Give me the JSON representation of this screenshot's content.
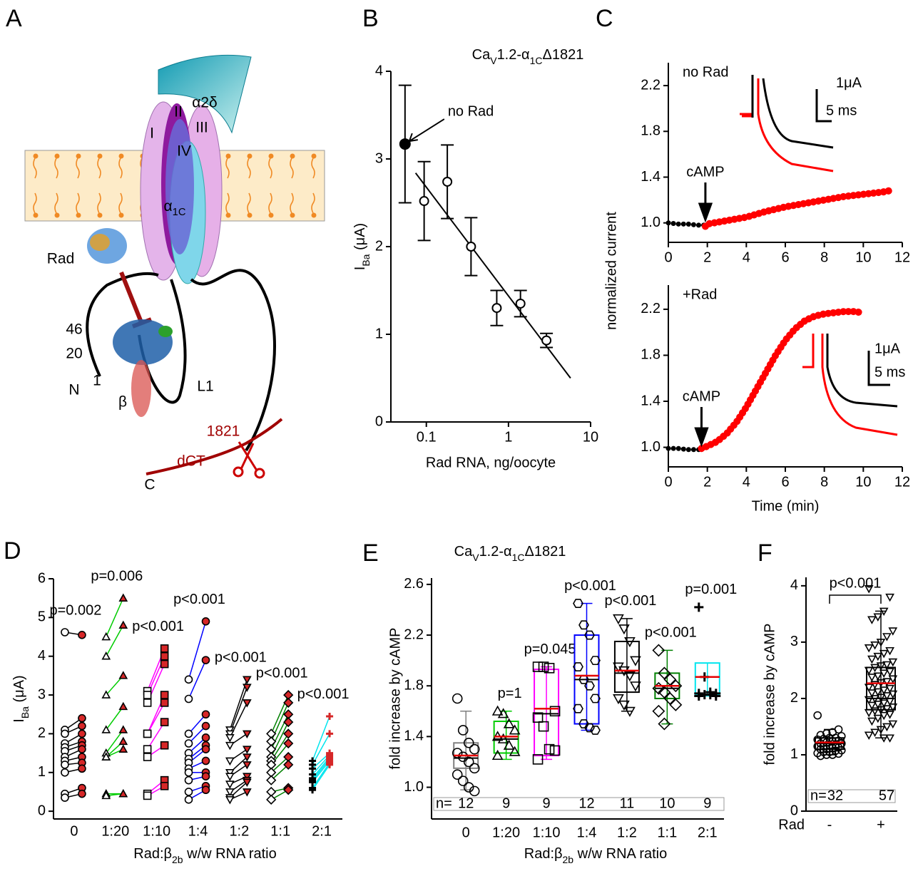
{
  "panel_labels": [
    "A",
    "B",
    "C",
    "D",
    "E",
    "F"
  ],
  "diagram": {
    "alpha2delta": "α2δ",
    "domains": [
      "I",
      "II",
      "III",
      "IV"
    ],
    "alpha1c": [
      "α",
      {
        "sub": "1C"
      }
    ],
    "rad": "Rad",
    "residues": [
      "46",
      "20",
      "1"
    ],
    "n_term": "N",
    "beta": "β",
    "loop": "L1",
    "cut_site": "1821",
    "dct": "dCT",
    "c_term": "C"
  },
  "chart_data": [
    {
      "type": "scatter",
      "title": [
        "Ca",
        {
          "sub": "V"
        },
        "1.2-α",
        {
          "sub": "1C"
        },
        "Δ1821"
      ],
      "x_label": "Rad RNA, ng/oocyte",
      "y_label": [
        "I",
        {
          "sub": "Ba"
        },
        " (μA)"
      ],
      "log_x": true,
      "color": "#000000",
      "x": [
        0.055,
        0.094,
        0.18,
        0.35,
        0.72,
        1.4,
        2.9
      ],
      "values": [
        3.17,
        2.52,
        2.74,
        2.0,
        1.3,
        1.35,
        0.93
      ],
      "errors": [
        0.67,
        0.45,
        0.42,
        0.33,
        0.2,
        0.15,
        0.08
      ],
      "filled": [
        true,
        false,
        false,
        false,
        false,
        false,
        false
      ],
      "fit": {
        "x": [
          0.074,
          5.7
        ],
        "values": [
          2.84,
          0.5
        ]
      },
      "annotation": "no Rad",
      "xlim": [
        0.037,
        10
      ],
      "ylim": [
        0,
        4
      ],
      "xticks": [
        0.1,
        1,
        10
      ],
      "yticks": [
        0,
        1,
        2,
        3,
        4
      ]
    },
    {
      "type": "line",
      "annotation": "no Rad",
      "stimulus": "cAMP",
      "stimulus_time": 1.9,
      "scale_labels": [
        "1μA",
        "5 ms"
      ],
      "y_label": "normalized current",
      "xlim": [
        0,
        12
      ],
      "xticks": [
        0,
        2,
        4,
        6,
        8,
        10,
        12
      ],
      "ylim": [
        0.83,
        2.4
      ],
      "yticks": [
        {
          "value": 1,
          "label": "1.0"
        },
        {
          "value": 1.4,
          "label": "1.4"
        },
        {
          "value": 1.8,
          "label": "1.8"
        },
        {
          "value": 2.2,
          "label": "2.2"
        }
      ],
      "series": [
        {
          "color": "#000000",
          "x": [
            0,
            0.5,
            1,
            1.5,
            1.9
          ],
          "values": [
            1.0,
            0.99,
            0.99,
            0.98,
            0.98
          ]
        },
        {
          "color": "#ff0000",
          "x": [
            1.9,
            2,
            3,
            4,
            5,
            6,
            7,
            8,
            9,
            10,
            11,
            11.3
          ],
          "values": [
            0.97,
            0.99,
            1.02,
            1.05,
            1.1,
            1.14,
            1.17,
            1.2,
            1.23,
            1.25,
            1.27,
            1.28
          ]
        }
      ]
    },
    {
      "type": "line",
      "annotation": "+Rad",
      "stimulus": "cAMP",
      "stimulus_time": 1.7,
      "scale_labels": [
        "1μA",
        "5 ms"
      ],
      "x_label": "Time (min)",
      "xlim": [
        0,
        12
      ],
      "xticks": [
        0,
        2,
        4,
        6,
        8,
        10,
        12
      ],
      "ylim": [
        0.83,
        2.41
      ],
      "yticks": [
        {
          "value": 1,
          "label": "1.0"
        },
        {
          "value": 1.4,
          "label": "1.4"
        },
        {
          "value": 1.8,
          "label": "1.8"
        },
        {
          "value": 2.2,
          "label": "2.2"
        }
      ],
      "series": [
        {
          "color": "#000000",
          "x": [
            0,
            0.5,
            1,
            1.5,
            1.7
          ],
          "values": [
            0.99,
            0.99,
            0.98,
            0.98,
            0.98
          ]
        },
        {
          "color": "#ff0000",
          "x": [
            1.7,
            2,
            2.5,
            3,
            3.5,
            4,
            4.5,
            5,
            5.5,
            6,
            6.5,
            7,
            7.5,
            8,
            8.5,
            9,
            9.5,
            10
          ],
          "values": [
            0.99,
            1.01,
            1.05,
            1.12,
            1.22,
            1.35,
            1.5,
            1.65,
            1.8,
            1.93,
            2.03,
            2.1,
            2.14,
            2.16,
            2.17,
            2.18,
            2.18,
            2.17
          ]
        }
      ]
    },
    {
      "type": "paired_dot",
      "x_label": [
        "Rad:β",
        {
          "sub": "2b"
        },
        " w/w RNA ratio"
      ],
      "y_label": [
        "I",
        {
          "sub": "Ba"
        },
        " (μA)"
      ],
      "categories": [
        "0",
        "1:20",
        "1:10",
        "1:4",
        "1:2",
        "1:1",
        "2:1"
      ],
      "ylim": [
        -0.2,
        6
      ],
      "yticks": [
        0,
        1,
        2,
        3,
        4,
        5,
        6
      ],
      "after_color": "#d62728",
      "groups": [
        {
          "p": "p=0.002",
          "color": "#000000",
          "marker": "circle",
          "before": [
            4.62,
            2.1,
            2.0,
            1.75,
            1.65,
            1.55,
            1.4,
            1.3,
            1.2,
            1.0,
            0.45,
            0.35
          ],
          "after": [
            4.55,
            2.4,
            2.2,
            2.0,
            1.8,
            1.7,
            1.6,
            1.4,
            1.25,
            1.1,
            0.6,
            0.45
          ]
        },
        {
          "p": "p=0.006",
          "color": "#00cc00",
          "marker": "triangle",
          "before": [
            4.5,
            4.0,
            3.0,
            2.1,
            1.5,
            1.4,
            1.4,
            0.45,
            0.4
          ],
          "after": [
            5.5,
            4.8,
            3.5,
            2.7,
            2.1,
            1.6,
            1.8,
            0.45,
            0.45
          ]
        },
        {
          "p": "p<0.001",
          "color": "#ff00ff",
          "marker": "square",
          "before": [
            3.1,
            3.0,
            2.8,
            2.0,
            2.0,
            1.6,
            1.4,
            0.45,
            0.4
          ],
          "after": [
            4.2,
            4.0,
            3.8,
            3.0,
            2.8,
            2.3,
            1.7,
            0.8,
            0.65
          ]
        },
        {
          "p": "p<0.001",
          "color": "#0000ff",
          "marker": "circle",
          "before": [
            3.4,
            2.9,
            2.0,
            1.75,
            1.5,
            1.35,
            1.25,
            1.1,
            1.0,
            0.8,
            0.5,
            0.3
          ],
          "after": [
            4.9,
            3.9,
            2.5,
            2.2,
            1.9,
            1.7,
            1.6,
            1.3,
            1.0,
            0.9,
            0.65,
            0.55
          ]
        },
        {
          "p": "p<0.001",
          "color": "#000000",
          "marker": "triangle-down",
          "before": [
            2.1,
            2.0,
            1.9,
            1.7,
            1.3,
            1.0,
            0.9,
            0.7,
            0.5,
            0.35,
            0.3
          ],
          "after": [
            3.4,
            3.2,
            2.8,
            2.0,
            1.6,
            1.4,
            1.2,
            0.9,
            0.8,
            0.75,
            0.5
          ]
        },
        {
          "p": "p<0.001",
          "color": "#008000",
          "marker": "diamond",
          "before": [
            2.0,
            1.8,
            1.6,
            1.4,
            1.3,
            1.2,
            1.0,
            0.8,
            0.5,
            0.3
          ],
          "after": [
            3.0,
            2.8,
            2.5,
            2.3,
            2.0,
            1.75,
            1.4,
            1.2,
            0.6,
            0.55
          ]
        },
        {
          "p": "p<0.001",
          "color": "#00e5ee",
          "marker": "plus",
          "before": [
            1.3,
            1.2,
            1.1,
            0.95,
            0.85,
            0.8,
            0.75,
            0.6,
            0.55
          ],
          "after": [
            2.45,
            2.0,
            1.5,
            1.45,
            1.4,
            1.35,
            1.3,
            1.25,
            1.2
          ]
        }
      ]
    },
    {
      "type": "box",
      "title": [
        "Ca",
        {
          "sub": "V"
        },
        "1.2-α",
        {
          "sub": "1C"
        },
        "Δ1821"
      ],
      "x_label": [
        "Rad:β",
        {
          "sub": "2b"
        },
        " w/w RNA ratio"
      ],
      "y_label": "fold increase by cAMP",
      "categories": [
        "0",
        "1:20",
        "1:10",
        "1:4",
        "1:2",
        "1:1",
        "2:1"
      ],
      "ylim": [
        0.75,
        2.65
      ],
      "yticks": [
        {
          "value": 1,
          "label": "1.0"
        },
        {
          "value": 1.4,
          "label": "1.4"
        },
        {
          "value": 1.8,
          "label": "1.8"
        },
        {
          "value": 2.2,
          "label": "2.2"
        },
        {
          "value": 2.6,
          "label": "2.6"
        }
      ],
      "n_prefix": "n=",
      "mean_color": "#e60000",
      "groups": [
        {
          "n": 12,
          "color": "#808080",
          "marker": "circle",
          "q1": 1.15,
          "median": 1.23,
          "mean": 1.25,
          "q3": 1.35,
          "whisker_low": 0.98,
          "whisker_high": 1.6,
          "points": [
            1.7,
            1.45,
            1.35,
            1.3,
            1.27,
            1.24,
            1.2,
            1.15,
            1.1,
            1.05,
            1.0,
            0.97
          ]
        },
        {
          "n": 9,
          "p": "p=1",
          "color": "#00cc00",
          "marker": "triangle",
          "q1": 1.27,
          "median": 1.38,
          "mean": 1.4,
          "q3": 1.52,
          "whisker_low": 1.22,
          "whisker_high": 1.6,
          "points": [
            1.6,
            1.58,
            1.5,
            1.45,
            1.4,
            1.38,
            1.33,
            1.28,
            1.25
          ]
        },
        {
          "n": 9,
          "p": "p=0.045",
          "color": "#ff00ff",
          "marker": "square",
          "q1": 1.25,
          "median": 1.58,
          "mean": 1.62,
          "q3": 1.93,
          "whisker_low": 1.22,
          "whisker_high": 1.95,
          "points": [
            1.95,
            1.95,
            1.94,
            1.6,
            1.55,
            1.48,
            1.3,
            1.29,
            1.22
          ]
        },
        {
          "n": 12,
          "p": "p<0.001",
          "color": "#0000ff",
          "marker": "hexagon",
          "q1": 1.5,
          "median": 1.85,
          "mean": 1.88,
          "q3": 2.2,
          "whisker_low": 1.45,
          "whisker_high": 2.45,
          "points": [
            2.45,
            2.28,
            2.2,
            2.0,
            1.95,
            1.85,
            1.8,
            1.7,
            1.62,
            1.5,
            1.47,
            1.45
          ]
        },
        {
          "n": 11,
          "p": "p<0.001",
          "color": "#000000",
          "marker": "triangle-down",
          "q1": 1.75,
          "median": 1.9,
          "mean": 1.92,
          "q3": 2.15,
          "whisker_low": 1.6,
          "whisker_high": 2.33,
          "points": [
            2.33,
            2.25,
            2.15,
            2.0,
            1.95,
            1.92,
            1.88,
            1.8,
            1.7,
            1.65,
            1.6
          ]
        },
        {
          "n": 10,
          "p": "p<0.001",
          "color": "#008000",
          "marker": "diamond",
          "q1": 1.7,
          "median": 1.78,
          "mean": 1.8,
          "q3": 1.9,
          "whisker_low": 1.5,
          "whisker_high": 2.08,
          "points": [
            2.08,
            1.9,
            1.85,
            1.8,
            1.78,
            1.75,
            1.7,
            1.65,
            1.6,
            1.5
          ]
        },
        {
          "n": 9,
          "p": "p=0.001",
          "color": "#00e5ee",
          "marker": "plus",
          "q1": 1.73,
          "median": 1.87,
          "mean": 1.87,
          "q3": 1.98,
          "whisker_low": 1.72,
          "whisker_high": 1.98,
          "points": [
            2.42,
            1.87,
            1.75,
            1.74,
            1.74,
            1.73,
            1.73,
            1.72,
            1.72
          ]
        }
      ]
    },
    {
      "type": "box",
      "x_label": "Rad",
      "y_label": "fold increase by cAMP",
      "categories": [
        "-",
        "+"
      ],
      "ylim": [
        0,
        4.15
      ],
      "yticks": [
        0,
        1,
        2,
        3,
        4
      ],
      "n_prefix": "n=",
      "mean_color": "#e60000",
      "bracket": "p<0.001",
      "groups": [
        {
          "n": 32,
          "color": "#000000",
          "marker": "circle",
          "q1": 1.1,
          "median": 1.2,
          "mean": 1.22,
          "q3": 1.3,
          "whisker_low": 1.0,
          "whisker_high": 1.45,
          "points": [
            1.7,
            1.45,
            1.4,
            1.38,
            1.35,
            1.33,
            1.3,
            1.3,
            1.28,
            1.27,
            1.25,
            1.24,
            1.22,
            1.2,
            1.2,
            1.18,
            1.17,
            1.15,
            1.15,
            1.13,
            1.12,
            1.1,
            1.1,
            1.08,
            1.07,
            1.05,
            1.05,
            1.03,
            1.02,
            1.0,
            1.0,
            0.98
          ]
        },
        {
          "n": 57,
          "color": "#000000",
          "marker": "triangle-down",
          "q1": 1.8,
          "median": 2.0,
          "mean": 2.27,
          "q3": 2.55,
          "whisker_low": 1.3,
          "whisker_high": 3.55,
          "points": [
            3.95,
            3.8,
            3.55,
            3.45,
            3.4,
            3.2,
            3.1,
            3.0,
            2.95,
            2.9,
            2.85,
            2.8,
            2.75,
            2.7,
            2.65,
            2.6,
            2.58,
            2.55,
            2.5,
            2.48,
            2.45,
            2.4,
            2.38,
            2.35,
            2.3,
            2.28,
            2.25,
            2.2,
            2.18,
            2.15,
            2.12,
            2.1,
            2.08,
            2.05,
            2.02,
            2.0,
            1.98,
            1.95,
            1.92,
            1.9,
            1.88,
            1.85,
            1.82,
            1.8,
            1.78,
            1.75,
            1.72,
            1.7,
            1.65,
            1.6,
            1.55,
            1.5,
            1.45,
            1.4,
            1.35,
            1.3,
            1.3
          ]
        }
      ]
    }
  ]
}
